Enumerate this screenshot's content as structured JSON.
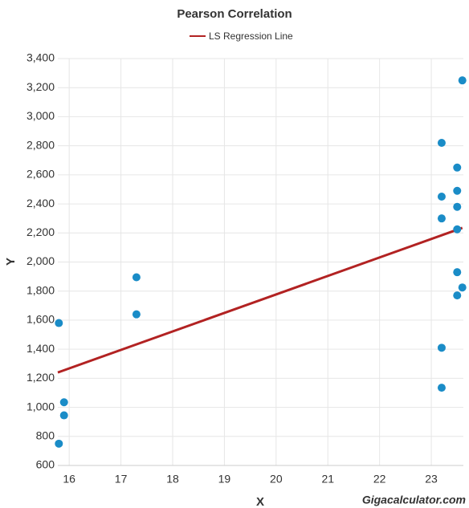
{
  "chart_data": {
    "type": "scatter",
    "title": "Pearson Correlation",
    "x_label": "X",
    "y_label": "Y",
    "watermark": "Gigacalculator.com",
    "xlim": [
      15.78,
      23.62
    ],
    "xticks": [
      16,
      17,
      18,
      19,
      20,
      21,
      22,
      23
    ],
    "ylim": [
      600,
      3400
    ],
    "yticks": [
      {
        "value": 600,
        "label": "600"
      },
      {
        "value": 800,
        "label": "800"
      },
      {
        "value": 1000,
        "label": "1,000"
      },
      {
        "value": 1200,
        "label": "1,200"
      },
      {
        "value": 1400,
        "label": "1,400"
      },
      {
        "value": 1600,
        "label": "1,600"
      },
      {
        "value": 1800,
        "label": "1,800"
      },
      {
        "value": 2000,
        "label": "2,000"
      },
      {
        "value": 2200,
        "label": "2,200"
      },
      {
        "value": 2400,
        "label": "2,400"
      },
      {
        "value": 2600,
        "label": "2,600"
      },
      {
        "value": 2800,
        "label": "2,800"
      },
      {
        "value": 3000,
        "label": "3,000"
      },
      {
        "value": 3200,
        "label": "3,200"
      },
      {
        "value": 3400,
        "label": "3,400"
      }
    ],
    "grid": true,
    "point_color": "#1a8cc7",
    "points": {
      "x": [
        15.8,
        15.9,
        15.9,
        15.8,
        17.3,
        17.3,
        23.2,
        23.2,
        23.2,
        23.2,
        23.2,
        23.5,
        23.5,
        23.5,
        23.5,
        23.5,
        23.5,
        23.6,
        23.6
      ],
      "y": [
        1580,
        1035,
        945,
        750,
        1895,
        1640,
        2820,
        2450,
        2300,
        1410,
        1135,
        2650,
        2490,
        2380,
        2225,
        1930,
        1770,
        3250,
        1825
      ]
    },
    "series": [
      {
        "name": "LS Regression Line",
        "color": "#b22222",
        "x": [
          15.78,
          23.6
        ],
        "values": [
          1240,
          2235
        ]
      }
    ]
  }
}
